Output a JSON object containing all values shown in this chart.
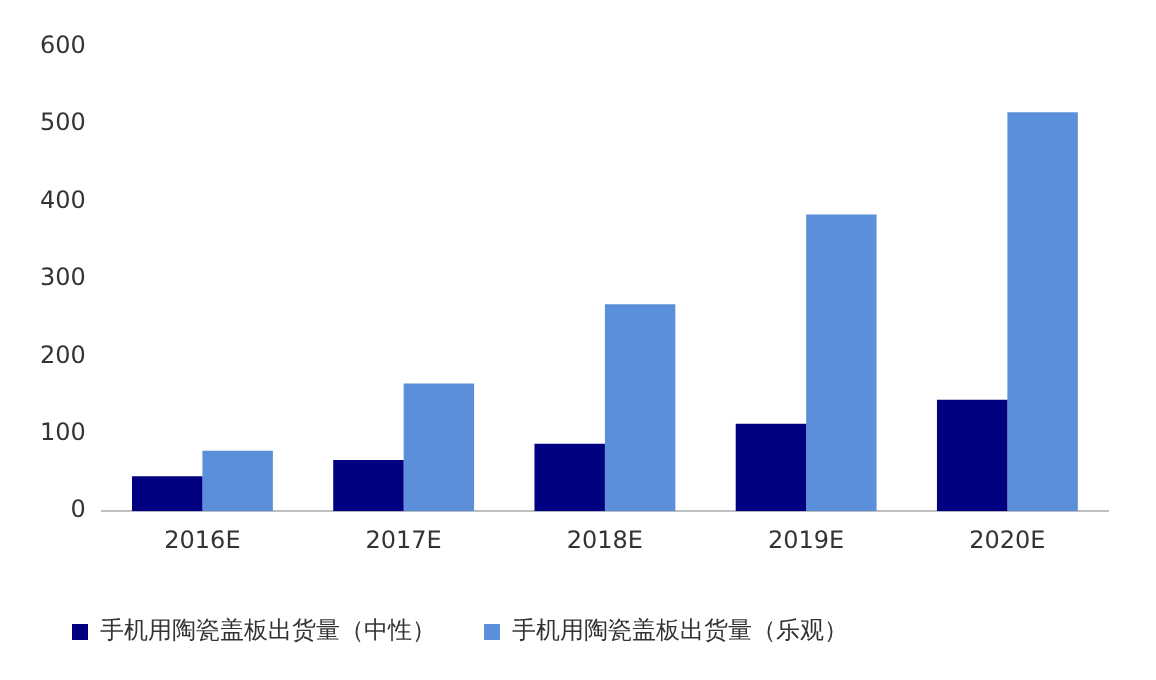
{
  "chart_data": {
    "type": "bar",
    "categories": [
      "2016E",
      "2017E",
      "2018E",
      "2019E",
      "2020E"
    ],
    "series": [
      {
        "name": "手机用陶瓷盖板出货量（中性）",
        "color": "#000080",
        "values": [
          45,
          66,
          87,
          113,
          144
        ]
      },
      {
        "name": "手机用陶瓷盖板出货量（乐观）",
        "color": "#5b8fd9",
        "values": [
          78,
          165,
          267,
          383,
          515
        ]
      }
    ],
    "ylim": [
      0,
      600
    ],
    "yticks": [
      0,
      100,
      200,
      300,
      400,
      500,
      600
    ],
    "grid": false,
    "legend": "bottom"
  }
}
